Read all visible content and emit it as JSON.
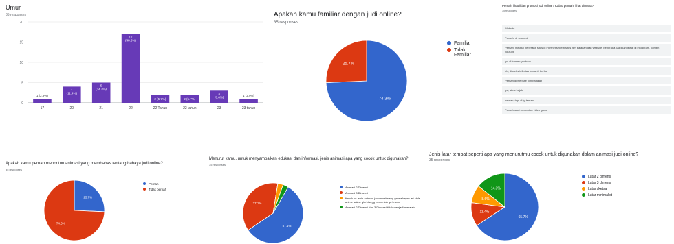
{
  "colors": {
    "blue": "#3366cc",
    "red": "#dc3912",
    "yellow": "#ff9900",
    "green": "#109618",
    "purple": "#673ab7"
  },
  "umur": {
    "title": "Umur",
    "subtitle": "35 responses"
  },
  "familiar": {
    "title": "Apakah kamu familiar dengan judi online?",
    "subtitle": "35 responses",
    "legend": [
      "Familiar",
      "Tidak Familiar"
    ]
  },
  "pernah_lihat": {
    "question": "Pernah lihat iklan promosi judi online? Kalau pernah, lihat dimana?",
    "subtitle": "35 responses",
    "answers": [
      "Website",
      "Pernah, di sosmed",
      "Pernah, melalui beberapa situs di internet seperti situs film bajakan dan website, beberapa kali iklan lewat di instagram, komen youtube",
      "iya di komen youtube",
      "Ya, di websitell atau tamanIt berita",
      "Pernah di website film bajakan",
      "iya, situs bajak",
      "pernah, tapi di ig teman",
      "Pernah saat menonton video game"
    ]
  },
  "menonton": {
    "title": "Apakah kamu pernah menonton animasi yang membahas tentang bahaya judi online?",
    "subtitle": "35 responses",
    "legend": [
      "Pernah",
      "Tidak pernah"
    ]
  },
  "jenis_animasi": {
    "title": "Menurut kamu, untuk menyampaikan edukasi dan informasi, jenis animasi apa yang cocok untuk digunakan?",
    "subtitle": "35 responses",
    "legend": [
      "Animasi 2 Dimensi",
      "Animasi 3 Dimensi",
      "Kayak ke-lebih animasi jamun sekaleng ga ala kayak art style anime anime gtu biar gg renbm lah ga lewan",
      "Animasi 2 Dimensi dan 3 Dimensi tidak menjadi masalah"
    ]
  },
  "latar": {
    "title": "Jenis latar tempat seperti apa yang menurutmu cocok untuk digunakan dalam animasi judi online?",
    "subtitle": "35 responses",
    "legend": [
      "Latar 2 dimensi",
      "Latar 3 dimensi",
      "Latar sketsa",
      "Latar minimalist"
    ]
  },
  "chart_data": [
    {
      "type": "bar",
      "title": "Umur",
      "categories": [
        "17",
        "20",
        "21",
        "22",
        "22 Tahun",
        "22 tahun",
        "23",
        "23 tahun"
      ],
      "values": [
        1,
        4,
        5,
        17,
        2,
        2,
        3,
        1
      ],
      "labels": [
        "1 (2.9%)",
        "4 (11.4%)",
        "5 (14.3%)",
        "17 (48.6%)",
        "2 (5.7%)",
        "2 (5.7%)",
        "3 (8.6%)",
        "1 (2.9%)"
      ],
      "ylim": [
        0,
        20
      ],
      "yticks": [
        "0",
        "5",
        "10",
        "15",
        "20"
      ],
      "grid": true
    },
    {
      "type": "pie",
      "title": "Apakah kamu familiar dengan judi online?",
      "categories": [
        "Familiar",
        "Tidak Familiar"
      ],
      "values": [
        74.3,
        25.7
      ],
      "labels": [
        "74.3%",
        "25.7%"
      ]
    },
    {
      "type": "pie",
      "title": "Apakah kamu pernah menonton animasi yang membahas tentang bahaya judi online?",
      "categories": [
        "Pernah",
        "Tidak pernah"
      ],
      "values": [
        25.7,
        74.3
      ],
      "labels": [
        "25.7%",
        "74.3%"
      ]
    },
    {
      "type": "pie",
      "title": "Menurut kamu, untuk menyampaikan edukasi dan informasi, jenis animasi apa yang cocok untuk digunakan?",
      "categories": [
        "Animasi 2 Dimensi",
        "Animasi 3 Dimensi",
        "Kayak ke-lebih animasi jamun sekaleng ga ala kayak art style anime anime gtu biar gg renbm lah ga lewan",
        "Animasi 2 Dimensi dan 3 Dimensi tidak menjadi masalah"
      ],
      "values": [
        57.1,
        37.1,
        2.9,
        2.9
      ],
      "labels": [
        "57.1%",
        "37.1%",
        "",
        ""
      ]
    },
    {
      "type": "pie",
      "title": "Jenis latar tempat seperti apa yang menurutmu cocok untuk digunakan dalam animasi judi online?",
      "categories": [
        "Latar 2 dimensi",
        "Latar 3 dimensi",
        "Latar sketsa",
        "Latar minimalist"
      ],
      "values": [
        65.7,
        11.4,
        8.6,
        14.3
      ],
      "labels": [
        "65.7%",
        "11.4%",
        "8.6%",
        "14.3%"
      ]
    }
  ]
}
